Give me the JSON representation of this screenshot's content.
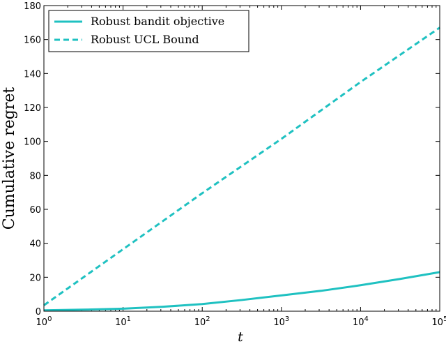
{
  "chart_data": {
    "type": "line",
    "xlabel": "t",
    "ylabel": "Cumulative regret",
    "xscale": "log",
    "xlim": [
      1,
      100000
    ],
    "ylim": [
      0,
      180
    ],
    "x_ticks": [
      1,
      10,
      100,
      1000,
      10000,
      100000
    ],
    "x_tick_labels": [
      {
        "base": "10",
        "exp": "0"
      },
      {
        "base": "10",
        "exp": "1"
      },
      {
        "base": "10",
        "exp": "2"
      },
      {
        "base": "10",
        "exp": "3"
      },
      {
        "base": "10",
        "exp": "4"
      },
      {
        "base": "10",
        "exp": "5"
      }
    ],
    "y_ticks": [
      "0",
      "20",
      "40",
      "60",
      "80",
      "100",
      "120",
      "140",
      "160",
      "180"
    ],
    "grid": false,
    "legend_position": "top-left",
    "series": [
      {
        "name": "Robust bandit objective",
        "style": "solid",
        "color": "#1fc1c1",
        "x": [
          1,
          3.16,
          10,
          31.6,
          100,
          316,
          1000,
          3162,
          10000,
          31623,
          100000
        ],
        "y": [
          0.5,
          0.9,
          1.5,
          2.6,
          4.2,
          6.6,
          9.3,
          12,
          15.3,
          19,
          23
        ]
      },
      {
        "name": "Robust UCL Bound",
        "style": "dashed",
        "color": "#1fc1c1",
        "x": [
          1,
          10,
          100,
          1000,
          10000,
          100000
        ],
        "y": [
          3.5,
          36.5,
          69.5,
          101.5,
          135,
          167
        ]
      }
    ]
  }
}
